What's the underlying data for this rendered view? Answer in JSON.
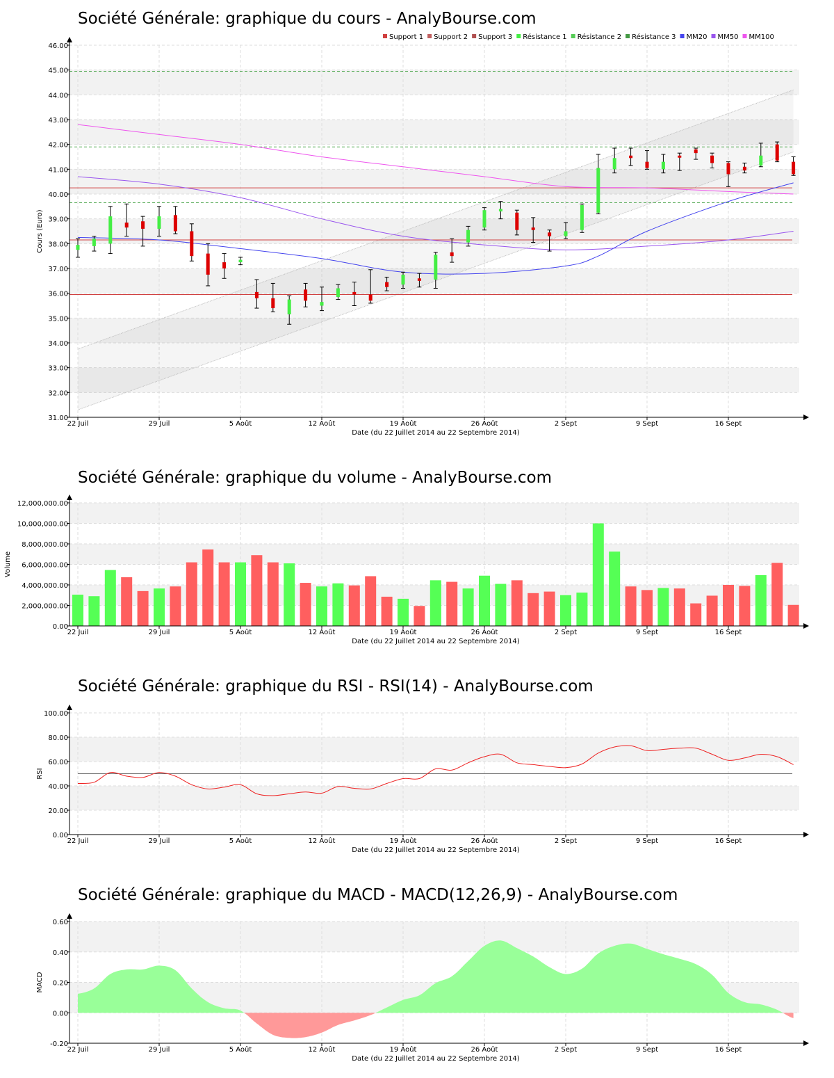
{
  "colors": {
    "up": "#44ee44",
    "down": "#dd0000",
    "volume_up": "#55ff55",
    "volume_down": "#ff5f5f",
    "support": "#d04040",
    "resistance": "#55aa55",
    "mm20": "#4444ee",
    "mm50": "#9955ee",
    "mm100": "#ee55ee",
    "rsi": "#ee2222",
    "macd_pos": "#99ff99",
    "macd_neg": "#ff9999",
    "band": "#f2f2f2",
    "grid": "#dddddd"
  },
  "x_ticks": [
    "22 Juil",
    "29 Juil",
    "5 Août",
    "12 Août",
    "19 Août",
    "26 Août",
    "2 Sept",
    "9 Sept",
    "16 Sept"
  ],
  "x_tick_days": [
    0,
    5,
    10,
    15,
    20,
    25,
    30,
    35,
    40
  ],
  "x_axis_label": "Date (du 22 Juillet 2014 au 22 Septembre 2014)",
  "chart_data": [
    {
      "id": "price",
      "type": "candlestick",
      "title": "Société Générale: graphique du cours - AnalyBourse.com",
      "xlabel": "Date (du 22 Juillet 2014 au 22 Septembre 2014)",
      "ylabel": "Cours (Euro)",
      "ylim": [
        31,
        46
      ],
      "yticks": [
        "31.00",
        "32.00",
        "33.00",
        "34.00",
        "35.00",
        "36.00",
        "37.00",
        "38.00",
        "39.00",
        "40.00",
        "41.00",
        "42.00",
        "43.00",
        "44.00",
        "45.00",
        "46.00"
      ],
      "legend": [
        "Support 1",
        "Support 2",
        "Support 3",
        "Résistance 1",
        "Résistance 2",
        "Résistance 3",
        "MM20",
        "MM50",
        "MM100"
      ],
      "legend_position": "top-right",
      "candles": [
        {
          "o": 37.75,
          "h": 38.2,
          "l": 37.45,
          "c": 37.95
        },
        {
          "o": 37.9,
          "h": 38.3,
          "l": 37.7,
          "c": 38.2
        },
        {
          "o": 38.0,
          "h": 39.5,
          "l": 37.6,
          "c": 39.1
        },
        {
          "o": 38.85,
          "h": 39.6,
          "l": 38.3,
          "c": 38.65
        },
        {
          "o": 38.9,
          "h": 39.1,
          "l": 37.9,
          "c": 38.6
        },
        {
          "o": 38.6,
          "h": 39.5,
          "l": 38.3,
          "c": 39.1
        },
        {
          "o": 39.15,
          "h": 39.5,
          "l": 38.4,
          "c": 38.5
        },
        {
          "o": 38.5,
          "h": 38.8,
          "l": 37.3,
          "c": 37.5
        },
        {
          "o": 37.6,
          "h": 38.0,
          "l": 36.3,
          "c": 36.75
        },
        {
          "o": 37.25,
          "h": 37.6,
          "l": 36.6,
          "c": 37.0
        },
        {
          "o": 37.25,
          "h": 37.45,
          "l": 37.15,
          "c": 37.35
        },
        {
          "o": 36.05,
          "h": 36.55,
          "l": 35.4,
          "c": 35.8
        },
        {
          "o": 35.8,
          "h": 36.4,
          "l": 35.25,
          "c": 35.4
        },
        {
          "o": 35.15,
          "h": 35.9,
          "l": 34.75,
          "c": 35.75
        },
        {
          "o": 36.15,
          "h": 36.4,
          "l": 35.45,
          "c": 35.7
        },
        {
          "o": 35.5,
          "h": 36.25,
          "l": 35.3,
          "c": 35.65
        },
        {
          "o": 35.85,
          "h": 36.35,
          "l": 35.75,
          "c": 36.2
        },
        {
          "o": 36.05,
          "h": 36.45,
          "l": 35.5,
          "c": 35.95
        },
        {
          "o": 35.95,
          "h": 36.95,
          "l": 35.6,
          "c": 35.7
        },
        {
          "o": 36.45,
          "h": 36.65,
          "l": 36.1,
          "c": 36.25
        },
        {
          "o": 36.35,
          "h": 36.85,
          "l": 36.2,
          "c": 36.75
        },
        {
          "o": 36.6,
          "h": 36.8,
          "l": 36.25,
          "c": 36.5
        },
        {
          "o": 36.55,
          "h": 37.65,
          "l": 36.2,
          "c": 37.55
        },
        {
          "o": 37.65,
          "h": 38.2,
          "l": 37.25,
          "c": 37.5
        },
        {
          "o": 38.05,
          "h": 38.7,
          "l": 37.9,
          "c": 38.55
        },
        {
          "o": 38.65,
          "h": 39.45,
          "l": 38.55,
          "c": 39.35
        },
        {
          "o": 39.3,
          "h": 39.7,
          "l": 39.0,
          "c": 39.4
        },
        {
          "o": 39.25,
          "h": 39.35,
          "l": 38.35,
          "c": 38.55
        },
        {
          "o": 38.65,
          "h": 39.05,
          "l": 38.05,
          "c": 38.55
        },
        {
          "o": 38.45,
          "h": 38.55,
          "l": 37.7,
          "c": 38.3
        },
        {
          "o": 38.3,
          "h": 38.85,
          "l": 38.2,
          "c": 38.5
        },
        {
          "o": 38.55,
          "h": 39.6,
          "l": 38.45,
          "c": 39.55
        },
        {
          "o": 39.25,
          "h": 41.6,
          "l": 39.2,
          "c": 41.05
        },
        {
          "o": 41.0,
          "h": 41.85,
          "l": 40.85,
          "c": 41.45
        },
        {
          "o": 41.55,
          "h": 41.85,
          "l": 41.15,
          "c": 41.45
        },
        {
          "o": 41.3,
          "h": 41.75,
          "l": 41.0,
          "c": 41.05
        },
        {
          "o": 41.0,
          "h": 41.6,
          "l": 40.85,
          "c": 41.3
        },
        {
          "o": 41.55,
          "h": 41.65,
          "l": 40.95,
          "c": 41.5
        },
        {
          "o": 41.8,
          "h": 41.85,
          "l": 41.4,
          "c": 41.65
        },
        {
          "o": 41.55,
          "h": 41.65,
          "l": 41.05,
          "c": 41.25
        },
        {
          "o": 41.25,
          "h": 41.3,
          "l": 40.3,
          "c": 40.8
        },
        {
          "o": 41.1,
          "h": 41.25,
          "l": 40.85,
          "c": 40.95
        },
        {
          "o": 41.15,
          "h": 42.05,
          "l": 41.1,
          "c": 41.55
        },
        {
          "o": 42.0,
          "h": 42.1,
          "l": 41.3,
          "c": 41.35
        },
        {
          "o": 41.3,
          "h": 41.5,
          "l": 40.75,
          "c": 40.8
        }
      ],
      "supports": [
        40.25,
        38.15,
        35.95
      ],
      "resistances": [
        44.95,
        41.9,
        39.65
      ],
      "channel_upper": [
        [
          0,
          33.75
        ],
        [
          44,
          44.2
        ]
      ],
      "channel_lower": [
        [
          0,
          31.3
        ],
        [
          44,
          41.7
        ]
      ],
      "mm20": [
        [
          0,
          38.25
        ],
        [
          5,
          38.15
        ],
        [
          10,
          37.8
        ],
        [
          15,
          37.4
        ],
        [
          20,
          36.85
        ],
        [
          25,
          36.8
        ],
        [
          30,
          37.1
        ],
        [
          32,
          37.5
        ],
        [
          35,
          38.5
        ],
        [
          40,
          39.7
        ],
        [
          44,
          40.45
        ]
      ],
      "mm50": [
        [
          0,
          40.7
        ],
        [
          5,
          40.4
        ],
        [
          10,
          39.85
        ],
        [
          15,
          39.0
        ],
        [
          20,
          38.3
        ],
        [
          25,
          37.95
        ],
        [
          30,
          37.75
        ],
        [
          35,
          37.9
        ],
        [
          40,
          38.15
        ],
        [
          44,
          38.5
        ]
      ],
      "mm100": [
        [
          0,
          42.8
        ],
        [
          5,
          42.4
        ],
        [
          10,
          42.0
        ],
        [
          15,
          41.5
        ],
        [
          20,
          41.1
        ],
        [
          25,
          40.7
        ],
        [
          30,
          40.3
        ],
        [
          35,
          40.25
        ],
        [
          40,
          40.1
        ],
        [
          44,
          40.0
        ]
      ]
    },
    {
      "id": "volume",
      "type": "bar",
      "title": "Société Générale: graphique du volume - AnalyBourse.com",
      "xlabel": "Date (du 22 Juillet 2014 au 22 Septembre 2014)",
      "ylabel": "Volume",
      "ylim": [
        0,
        12000000
      ],
      "yticks": [
        "0.00",
        "2,000,000.00",
        "4,000,000.00",
        "6,000,000.00",
        "8,000,000.00",
        "10,000,000.00",
        "12,000,000.00"
      ],
      "values": [
        3050000,
        2900000,
        5450000,
        4750000,
        3400000,
        3650000,
        3850000,
        6200000,
        7450000,
        6200000,
        6200000,
        6900000,
        6200000,
        6100000,
        4200000,
        3850000,
        4150000,
        3950000,
        4850000,
        2850000,
        2650000,
        1950000,
        4450000,
        4300000,
        3650000,
        4900000,
        4100000,
        4450000,
        3200000,
        3350000,
        3000000,
        3250000,
        10000000,
        7250000,
        3850000,
        3500000,
        3700000,
        3650000,
        2200000,
        2950000,
        4000000,
        3900000,
        4950000,
        6150000,
        2050000
      ]
    },
    {
      "id": "rsi",
      "type": "line",
      "title": "Société Générale: graphique du RSI - RSI(14) - AnalyBourse.com",
      "xlabel": "Date (du 22 Juillet 2014 au 22 Septembre 2014)",
      "ylabel": "RSI",
      "ylim": [
        0,
        100
      ],
      "yticks": [
        "0.00",
        "20.00",
        "40.00",
        "60.00",
        "80.00",
        "100.00"
      ],
      "reference": 50,
      "values": [
        42,
        43,
        51,
        48,
        47,
        51,
        48,
        41,
        37.5,
        39,
        41,
        33.5,
        32,
        33.5,
        35,
        34,
        39.5,
        38,
        37.5,
        42,
        46,
        46,
        54,
        53,
        59,
        64,
        66,
        59,
        57.5,
        56,
        55,
        58,
        67,
        72,
        73,
        69,
        70,
        71,
        71,
        66,
        61,
        63,
        66,
        64,
        57.5
      ]
    },
    {
      "id": "macd",
      "type": "area",
      "title": "Société Générale: graphique du MACD - MACD(12,26,9) - AnalyBourse.com",
      "xlabel": "Date (du 22 Juillet 2014 au 22 Septembre 2014)",
      "ylabel": "MACD",
      "ylim": [
        -0.2,
        0.6
      ],
      "yticks": [
        "-0.20",
        "0.00",
        "0.20",
        "0.40",
        "0.60"
      ],
      "values": [
        0.125,
        0.16,
        0.255,
        0.285,
        0.285,
        0.31,
        0.28,
        0.16,
        0.07,
        0.03,
        0.015,
        -0.07,
        -0.145,
        -0.165,
        -0.16,
        -0.13,
        -0.08,
        -0.05,
        -0.015,
        0.035,
        0.085,
        0.115,
        0.195,
        0.24,
        0.34,
        0.44,
        0.475,
        0.425,
        0.37,
        0.3,
        0.255,
        0.29,
        0.39,
        0.44,
        0.455,
        0.42,
        0.385,
        0.355,
        0.32,
        0.25,
        0.13,
        0.07,
        0.055,
        0.02,
        -0.035
      ]
    }
  ]
}
